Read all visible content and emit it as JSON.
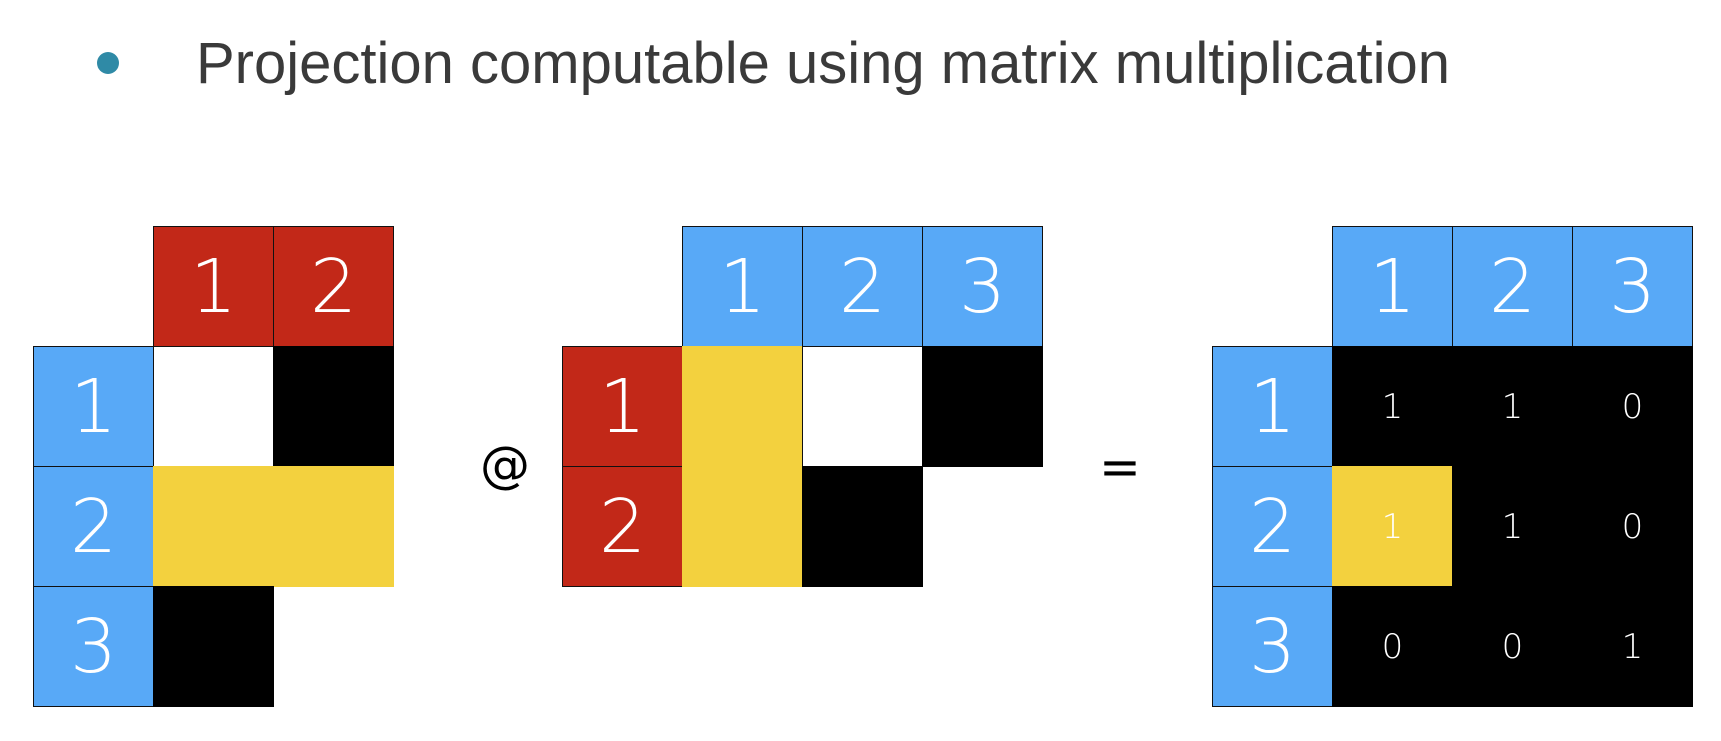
{
  "title": "Projection computable using matrix multiplication",
  "operators": {
    "matmul": "@",
    "equals": "="
  },
  "colors": {
    "blue": "#58a9f7",
    "red": "#c22818",
    "yellow": "#f3d13e",
    "black": "#000000",
    "white": "#ffffff",
    "bullet": "#2f8aa6"
  },
  "matrices": [
    {
      "id": "left",
      "column_headers": [
        "1",
        "2"
      ],
      "column_header_color": "red",
      "row_headers": [
        "1",
        "2",
        "3"
      ],
      "row_header_color": "blue",
      "cells": [
        [
          "white",
          "black"
        ],
        [
          "yellow",
          "yellow"
        ],
        [
          "black",
          "none"
        ]
      ]
    },
    {
      "id": "middle",
      "column_headers": [
        "1",
        "2",
        "3"
      ],
      "column_header_color": "blue",
      "row_headers": [
        "1",
        "2"
      ],
      "row_header_color": "red",
      "cells": [
        [
          "yellow",
          "white",
          "black"
        ],
        [
          "yellow",
          "black",
          "none"
        ]
      ]
    },
    {
      "id": "result",
      "column_headers": [
        "1",
        "2",
        "3"
      ],
      "column_header_color": "blue",
      "row_headers": [
        "1",
        "2",
        "3"
      ],
      "row_header_color": "blue",
      "cells": [
        [
          "black",
          "black",
          "black"
        ],
        [
          "yellow",
          "black",
          "black"
        ],
        [
          "black",
          "black",
          "black"
        ]
      ],
      "values": [
        [
          "1",
          "1",
          "0"
        ],
        [
          "1",
          "1",
          "0"
        ],
        [
          "0",
          "0",
          "1"
        ]
      ]
    }
  ]
}
